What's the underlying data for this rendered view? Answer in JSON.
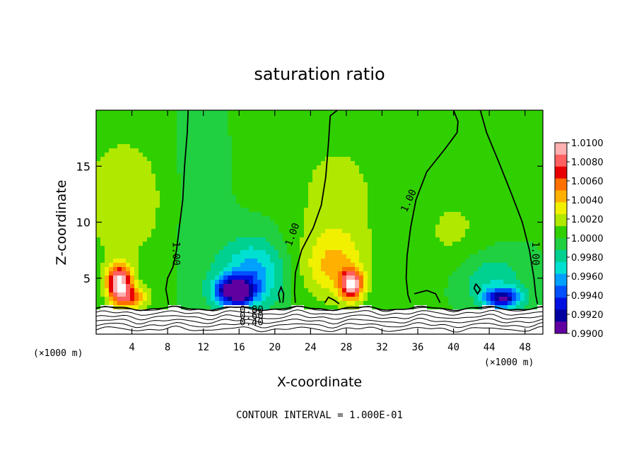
{
  "chart_data": {
    "type": "heatmap",
    "title": "saturation ratio",
    "xlabel": "X-coordinate",
    "ylabel": "Z-coordinate",
    "x_unit": "(×1000 m)",
    "y_unit": "(×1000 m)",
    "xlim": [
      0,
      50
    ],
    "ylim": [
      0,
      20
    ],
    "x_ticks": [
      "4",
      "8",
      "12",
      "16",
      "20",
      "24",
      "28",
      "32",
      "36",
      "40",
      "44",
      "48"
    ],
    "y_ticks": [
      "5",
      "10",
      "15"
    ],
    "colorbar": {
      "labels": [
        "1.0100",
        "1.0080",
        "1.0060",
        "1.0040",
        "1.0020",
        "1.0000",
        "0.9980",
        "0.9960",
        "0.9940",
        "0.9920",
        "0.9900"
      ],
      "colors": [
        "#ffb0b0",
        "#ff6060",
        "#e80000",
        "#ff7000",
        "#ffb000",
        "#f0f000",
        "#b0e800",
        "#30d000",
        "#20d040",
        "#00d090",
        "#00e0d0",
        "#00a0ff",
        "#0050ff",
        "#0010e0",
        "#0000a0",
        "#6000a0"
      ]
    },
    "contour_labels": [
      "1.00",
      "1.00",
      "1.00",
      "1.00",
      "0.80",
      "0.60",
      "0.40"
    ],
    "annotation": "CONTOUR INTERVAL = 1.000E-01",
    "grid": false
  }
}
